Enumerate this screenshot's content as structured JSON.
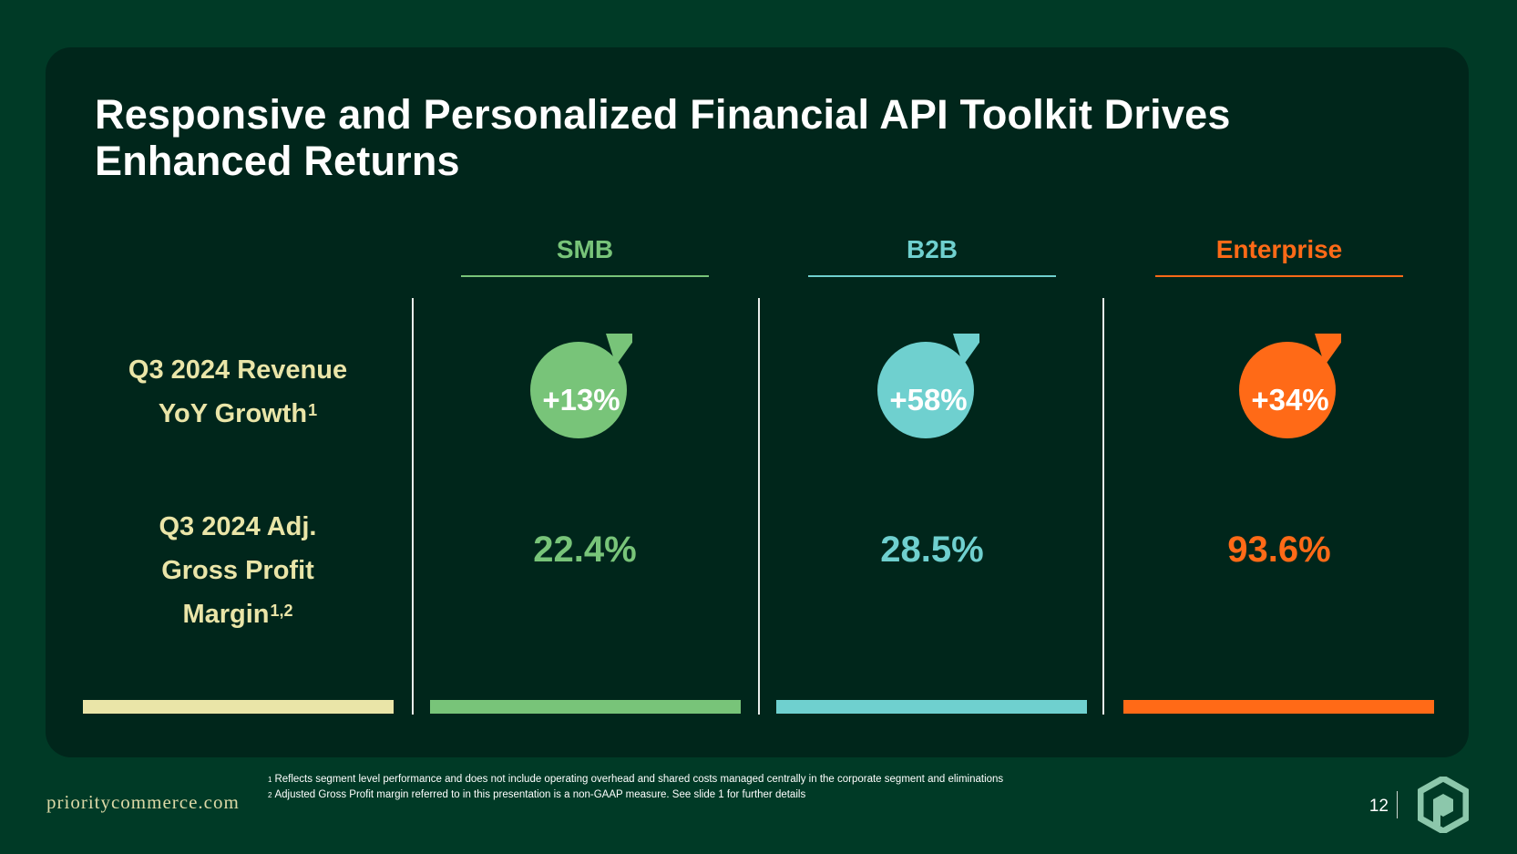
{
  "slide": {
    "title_line1": "Responsive and Personalized Financial API Toolkit Drives",
    "title_line2": "Enhanced Returns"
  },
  "row_labels": {
    "revenue_line1": "Q3 2024 Revenue",
    "revenue_line2": "YoY Growth",
    "revenue_sup": "1",
    "margin_line1": "Q3 2024 Adj.",
    "margin_line2": "Gross Profit",
    "margin_line3": "Margin",
    "margin_sup": "1,2"
  },
  "segments": [
    {
      "name": "SMB",
      "growth": "+13%",
      "margin": "22.4%",
      "color": "#78c479"
    },
    {
      "name": "B2B",
      "growth": "+58%",
      "margin": "28.5%",
      "color": "#6fd0cf"
    },
    {
      "name": "Enterprise",
      "growth": "+34%",
      "margin": "93.6%",
      "color": "#ff6a17"
    }
  ],
  "label_color": "#eae5a8",
  "footnotes": {
    "note1_marker": "1",
    "note1": "Reflects segment level performance and does not include operating overhead and shared costs managed centrally in the corporate segment and eliminations",
    "note2_marker": "2",
    "note2": "Adjusted Gross Profit margin referred to in this presentation is a non-GAAP measure. See slide 1 for further details"
  },
  "footer": {
    "website": "prioritycommerce.com",
    "page_number": "12",
    "logo_icon": "priority-hexagon-logo-icon"
  }
}
